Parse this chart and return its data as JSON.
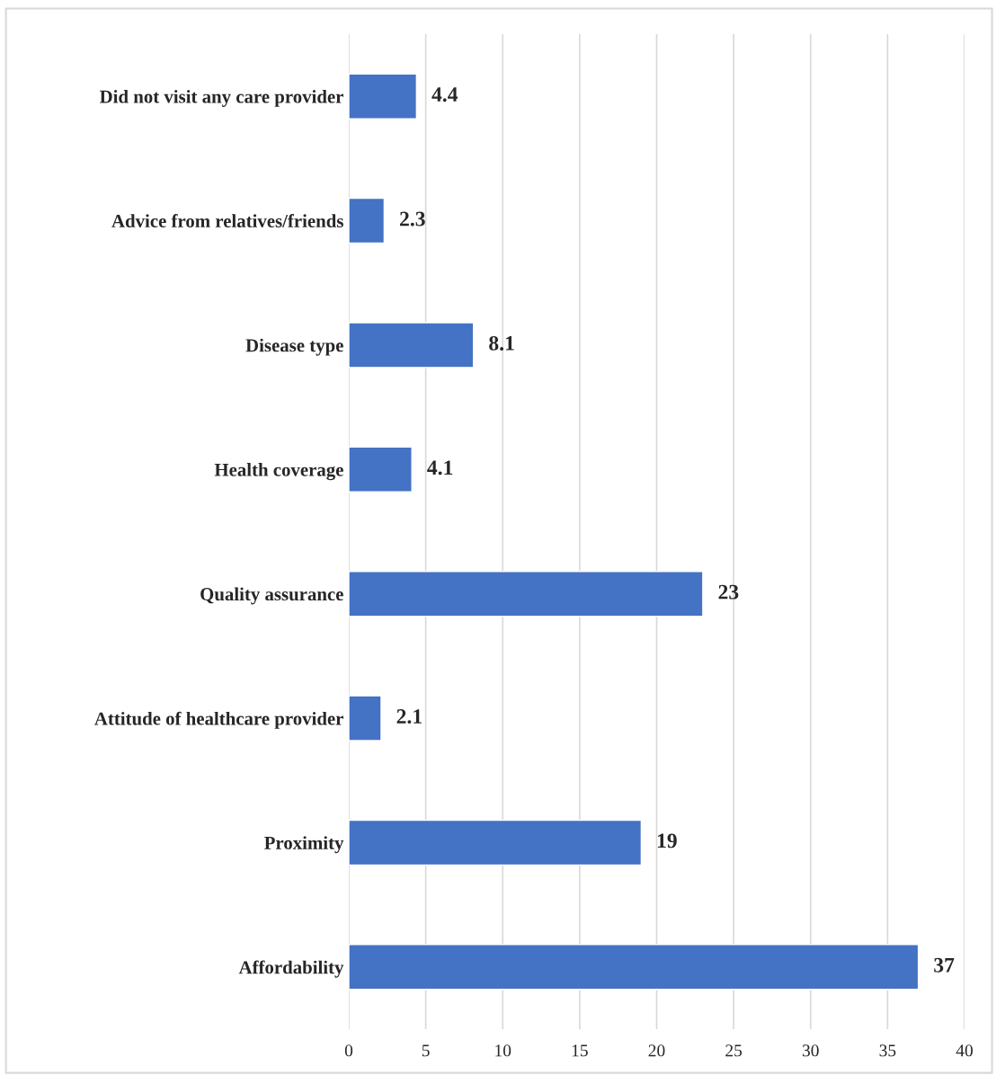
{
  "chart_data": {
    "type": "bar",
    "orientation": "horizontal",
    "categories": [
      "Did not visit any care provider",
      "Advice from relatives/friends",
      "Disease type",
      "Health coverage",
      "Quality assurance",
      "Attitude of healthcare provider",
      "Proximity",
      "Affordability"
    ],
    "values": [
      4.4,
      2.3,
      8.1,
      4.1,
      23,
      2.1,
      19,
      37
    ],
    "color": "#4472c4",
    "xlim": [
      0,
      40
    ],
    "xticks": [
      0,
      5,
      10,
      15,
      20,
      25,
      30,
      35,
      40
    ],
    "grid": "x",
    "data_labels": true
  }
}
